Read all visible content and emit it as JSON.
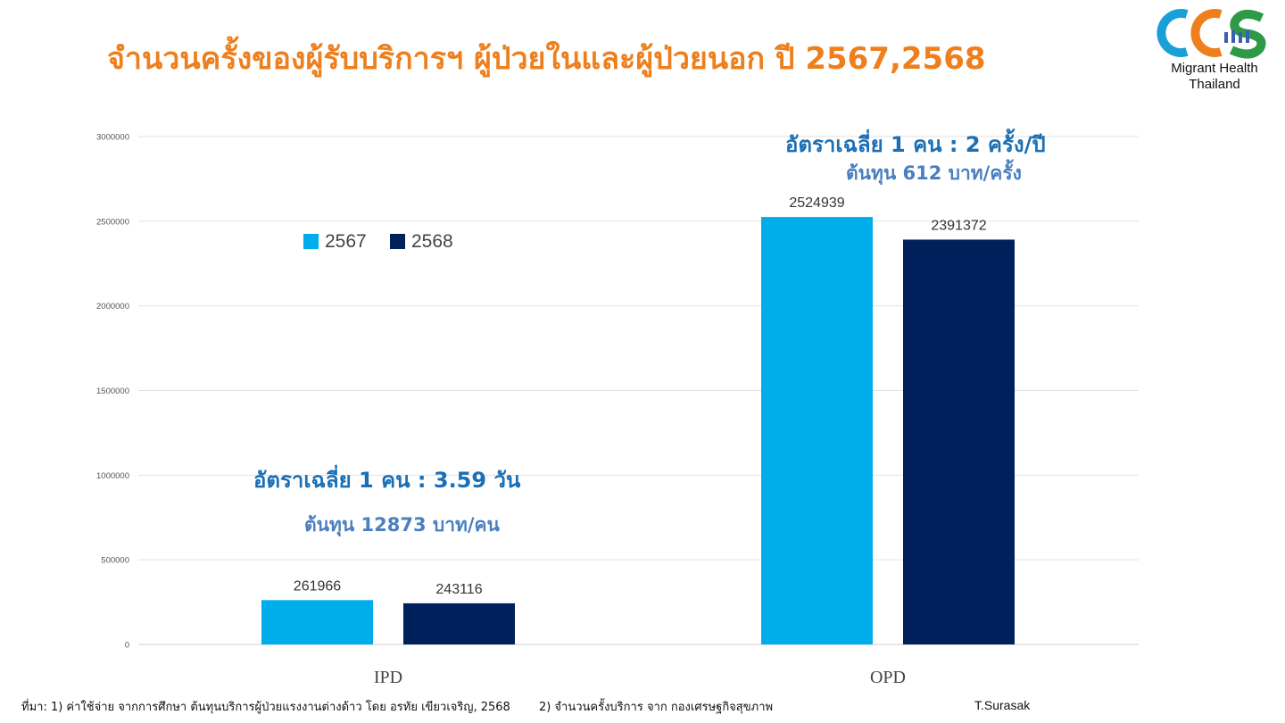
{
  "title": "จำนวนครั้งของผู้รับบริการฯ ผู้ป่วยในและผู้ป่วยนอก  ปี 2567,2568",
  "logo": {
    "letters": "CCS",
    "line1": "Migrant Health",
    "line2": "Thailand",
    "colors": [
      "#1aa0d8",
      "#ee7f1c",
      "#2e9a47"
    ]
  },
  "annotations": {
    "opd_rate": "อัตราเฉลี่ย 1 คน : 2 ครั้ง/ปี",
    "opd_cost": "ต้นทุน 612 บาท/ครั้ง",
    "ipd_rate": "อัตราเฉลี่ย 1 คน : 3.59 วัน",
    "ipd_cost": "ต้นทุน 12873 บาท/คน"
  },
  "footer": {
    "source1": "ที่มา: 1) ค่าใช้จ่าย  จากการศึกษา ต้นทุนบริการผู้ป่วยแรงงานต่างด้าว  โดย อรทัย เขียวเจริญ, 2568",
    "source2": "2)  จำนวนครั้งบริการ  จาก กองเศรษฐกิจสุขภาพ",
    "author": "T.Surasak"
  },
  "chart_data": {
    "type": "bar",
    "categories": [
      "IPD",
      "OPD"
    ],
    "series": [
      {
        "name": "2567",
        "values": [
          261966,
          2524939
        ],
        "color": "#00adeb"
      },
      {
        "name": "2568",
        "values": [
          243116,
          2391372
        ],
        "color": "#00205c"
      }
    ],
    "ylim": [
      0,
      3000000
    ],
    "yticks": [
      0,
      500000,
      1000000,
      1500000,
      2000000,
      2500000,
      3000000
    ],
    "grid": true,
    "legend": "upper-left"
  }
}
